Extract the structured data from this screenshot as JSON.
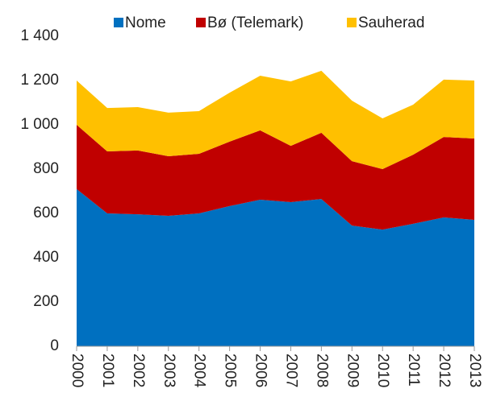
{
  "chart_data": {
    "type": "stacked-area",
    "categories": [
      "2000",
      "2001",
      "2002",
      "2003",
      "2004",
      "2005",
      "2006",
      "2007",
      "2008",
      "2009",
      "2010",
      "2011",
      "2012",
      "2013"
    ],
    "series": [
      {
        "name": "Nome",
        "color": "#0070c0",
        "values": [
          710,
          600,
          596,
          589,
          600,
          633,
          662,
          651,
          665,
          545,
          527,
          553,
          582,
          571
        ]
      },
      {
        "name": "Bø (Telemark)",
        "color": "#c00000",
        "values": [
          290,
          280,
          288,
          269,
          269,
          291,
          313,
          254,
          299,
          291,
          273,
          312,
          363,
          367
        ]
      },
      {
        "name": "Sauherad",
        "color": "#ffc000",
        "values": [
          200,
          196,
          196,
          197,
          193,
          221,
          247,
          291,
          280,
          273,
          229,
          226,
          259,
          262
        ]
      }
    ],
    "ylim": [
      0,
      1400
    ],
    "yticks": [
      0,
      200,
      400,
      600,
      800,
      {
        "value": 1000,
        "label": "1 000"
      },
      {
        "value": 1200,
        "label": "1 200"
      },
      {
        "value": 1400,
        "label": "1 400"
      }
    ],
    "legend": "top"
  }
}
